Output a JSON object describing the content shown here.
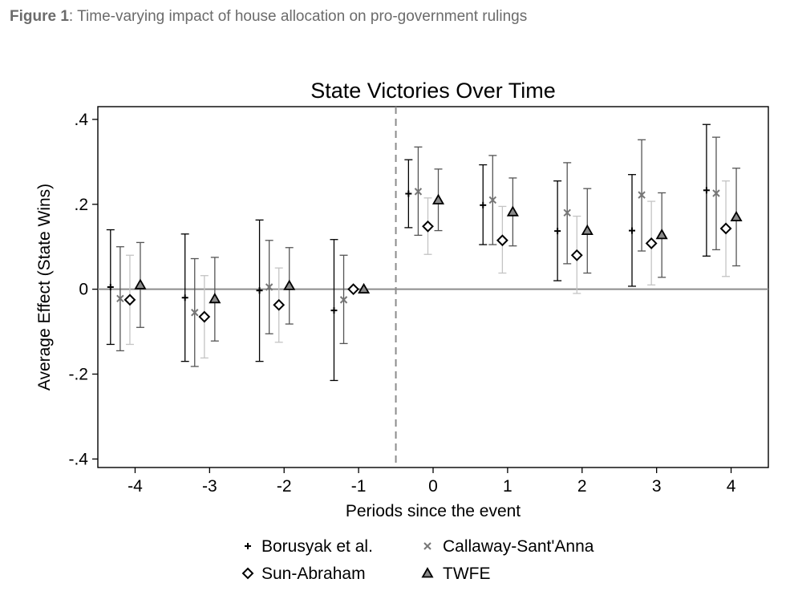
{
  "caption": {
    "label": "Figure 1",
    "separator": ": ",
    "text": "Time-varying impact of house allocation on pro-government rulings"
  },
  "chart_data": {
    "type": "scatter",
    "title": "State Victories Over Time",
    "xlabel": "Periods since the event",
    "ylabel": "Average Effect (State Wins)",
    "xlim": [
      -4.5,
      4.5
    ],
    "ylim": [
      -0.42,
      0.43
    ],
    "xticks": [
      -4,
      -3,
      -2,
      -1,
      0,
      1,
      2,
      3,
      4
    ],
    "xtick_labels": [
      "-4",
      "-3",
      "-2",
      "-1",
      "0",
      "1",
      "2",
      "3",
      "4"
    ],
    "yticks": [
      -0.4,
      -0.2,
      0,
      0.2,
      0.4
    ],
    "ytick_labels": [
      "-.4",
      "-.2",
      "0",
      ".2",
      ".4"
    ],
    "event_line_x": -0.5,
    "zero_line_y": 0,
    "grid": false,
    "legend_position": "bottom",
    "series": [
      {
        "name": "Borusyak et al.",
        "marker": "plus",
        "color": "#000000",
        "ci_color": "#000000",
        "points": [
          {
            "x": -4,
            "y": 0.005,
            "lo": -0.13,
            "hi": 0.14
          },
          {
            "x": -3,
            "y": -0.02,
            "lo": -0.17,
            "hi": 0.13
          },
          {
            "x": -2,
            "y": -0.003,
            "lo": -0.17,
            "hi": 0.163
          },
          {
            "x": -1,
            "y": -0.05,
            "lo": -0.215,
            "hi": 0.117
          },
          {
            "x": 0,
            "y": 0.225,
            "lo": 0.145,
            "hi": 0.305
          },
          {
            "x": 1,
            "y": 0.198,
            "lo": 0.105,
            "hi": 0.293
          },
          {
            "x": 2,
            "y": 0.137,
            "lo": 0.02,
            "hi": 0.255
          },
          {
            "x": 3,
            "y": 0.138,
            "lo": 0.007,
            "hi": 0.27
          },
          {
            "x": 4,
            "y": 0.233,
            "lo": 0.078,
            "hi": 0.388
          }
        ]
      },
      {
        "name": "Callaway-Sant'Anna",
        "marker": "x",
        "color": "#777777",
        "ci_color": "#555555",
        "points": [
          {
            "x": -4,
            "y": -0.022,
            "lo": -0.145,
            "hi": 0.1
          },
          {
            "x": -3,
            "y": -0.055,
            "lo": -0.182,
            "hi": 0.072
          },
          {
            "x": -2,
            "y": 0.005,
            "lo": -0.105,
            "hi": 0.115
          },
          {
            "x": -1,
            "y": -0.025,
            "lo": -0.128,
            "hi": 0.08
          },
          {
            "x": 0,
            "y": 0.23,
            "lo": 0.127,
            "hi": 0.335
          },
          {
            "x": 1,
            "y": 0.21,
            "lo": 0.105,
            "hi": 0.315
          },
          {
            "x": 2,
            "y": 0.18,
            "lo": 0.06,
            "hi": 0.298
          },
          {
            "x": 3,
            "y": 0.222,
            "lo": 0.09,
            "hi": 0.352
          },
          {
            "x": 4,
            "y": 0.226,
            "lo": 0.093,
            "hi": 0.358
          }
        ]
      },
      {
        "name": "Sun-Abraham",
        "marker": "diamond",
        "color": "#000000",
        "ci_color": "#c4c4c4",
        "points": [
          {
            "x": -4,
            "y": -0.025,
            "lo": -0.13,
            "hi": 0.08
          },
          {
            "x": -3,
            "y": -0.065,
            "lo": -0.162,
            "hi": 0.032
          },
          {
            "x": -2,
            "y": -0.037,
            "lo": -0.125,
            "hi": 0.05
          },
          {
            "x": -1,
            "y": 0.0,
            "lo": 0.0,
            "hi": 0.0
          },
          {
            "x": 0,
            "y": 0.148,
            "lo": 0.082,
            "hi": 0.215
          },
          {
            "x": 1,
            "y": 0.115,
            "lo": 0.038,
            "hi": 0.195
          },
          {
            "x": 2,
            "y": 0.08,
            "lo": -0.01,
            "hi": 0.172
          },
          {
            "x": 3,
            "y": 0.108,
            "lo": 0.01,
            "hi": 0.207
          },
          {
            "x": 4,
            "y": 0.143,
            "lo": 0.03,
            "hi": 0.255
          }
        ]
      },
      {
        "name": "TWFE",
        "marker": "triangle",
        "color": "#000000",
        "fill": "#8a8a8a",
        "ci_color": "#555555",
        "points": [
          {
            "x": -4,
            "y": 0.01,
            "lo": -0.09,
            "hi": 0.11
          },
          {
            "x": -3,
            "y": -0.023,
            "lo": -0.122,
            "hi": 0.075
          },
          {
            "x": -2,
            "y": 0.008,
            "lo": -0.082,
            "hi": 0.098
          },
          {
            "x": -1,
            "y": 0.0,
            "lo": 0.0,
            "hi": 0.0
          },
          {
            "x": 0,
            "y": 0.21,
            "lo": 0.138,
            "hi": 0.283
          },
          {
            "x": 1,
            "y": 0.182,
            "lo": 0.102,
            "hi": 0.262
          },
          {
            "x": 2,
            "y": 0.138,
            "lo": 0.038,
            "hi": 0.237
          },
          {
            "x": 3,
            "y": 0.128,
            "lo": 0.028,
            "hi": 0.227
          },
          {
            "x": 4,
            "y": 0.17,
            "lo": 0.055,
            "hi": 0.285
          }
        ]
      }
    ]
  }
}
